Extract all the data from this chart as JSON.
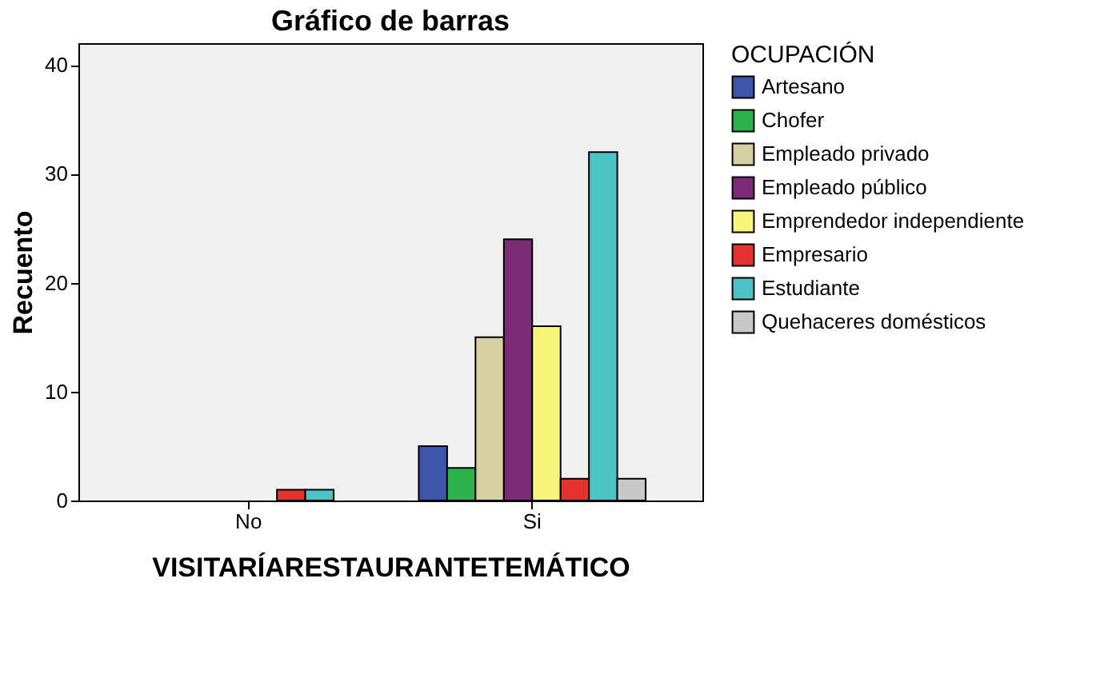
{
  "chart_data": {
    "type": "bar",
    "title": "Gráfico de barras",
    "xlabel": "VISITARÍARESTAURANTETEMÁTICO",
    "ylabel": "Recuento",
    "legend_title": "OCUPACIÓN",
    "legend": "right",
    "grid": false,
    "categories": [
      "No",
      "Si"
    ],
    "series": [
      {
        "name": "Artesano",
        "color": "#3d55a8",
        "values": [
          null,
          5
        ]
      },
      {
        "name": "Chofer",
        "color": "#2bb24c",
        "values": [
          null,
          3
        ]
      },
      {
        "name": "Empleado privado",
        "color": "#d6cfa2",
        "values": [
          null,
          15
        ]
      },
      {
        "name": "Empleado público",
        "color": "#7b2a78",
        "values": [
          null,
          24
        ]
      },
      {
        "name": "Emprendedor independiente",
        "color": "#f9f57a",
        "values": [
          null,
          16
        ]
      },
      {
        "name": "Empresario",
        "color": "#e6322e",
        "values": [
          1,
          2
        ]
      },
      {
        "name": "Estudiante",
        "color": "#4cc4c6",
        "values": [
          1,
          32
        ]
      },
      {
        "name": "Quehaceres domésticos",
        "color": "#c8c8c8",
        "values": [
          null,
          2
        ]
      }
    ],
    "ylim": [
      0,
      42
    ],
    "yticks": [
      0,
      10,
      20,
      30,
      40
    ]
  }
}
